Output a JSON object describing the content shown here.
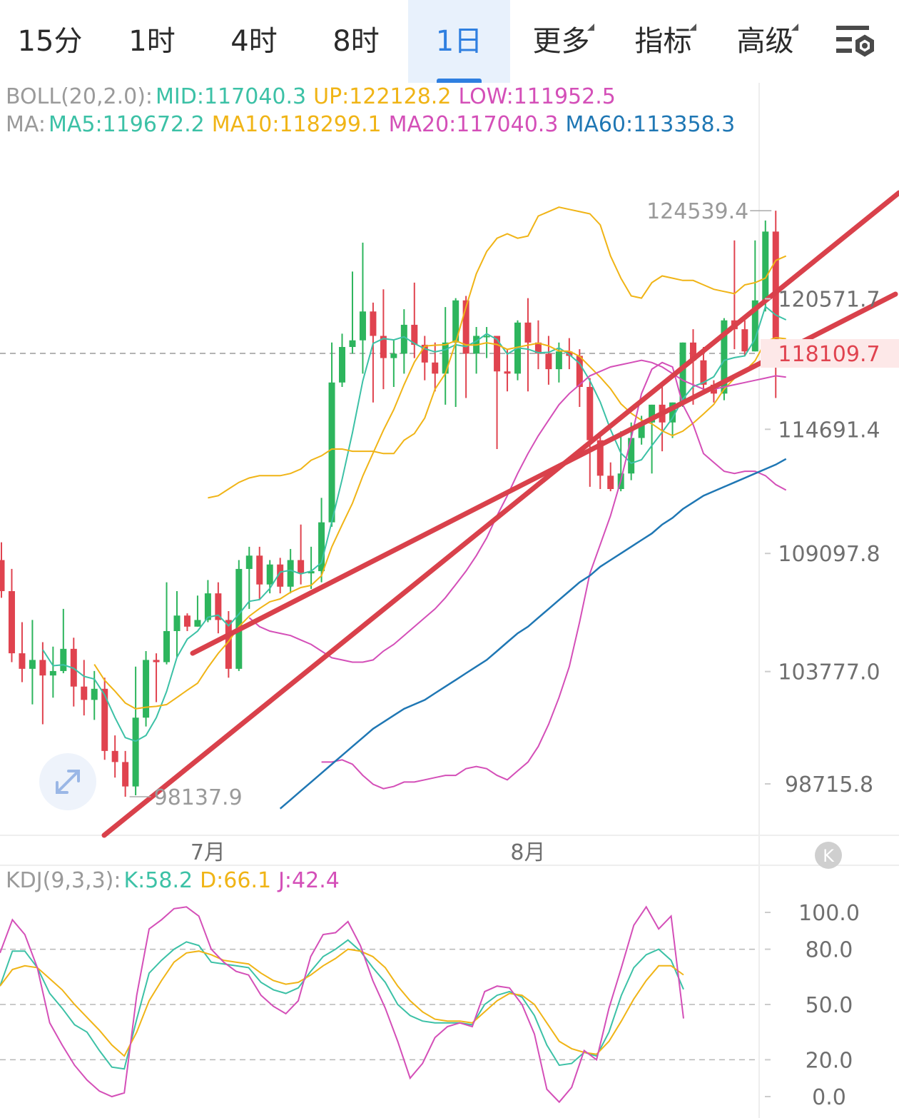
{
  "tabs": [
    {
      "label": "15分",
      "active": false,
      "dropdown": false
    },
    {
      "label": "1时",
      "active": false,
      "dropdown": false
    },
    {
      "label": "4时",
      "active": false,
      "dropdown": false
    },
    {
      "label": "8时",
      "active": false,
      "dropdown": false
    },
    {
      "label": "1日",
      "active": true,
      "dropdown": false
    },
    {
      "label": "更多",
      "active": false,
      "dropdown": true
    },
    {
      "label": "指标",
      "active": false,
      "dropdown": true
    },
    {
      "label": "高级",
      "active": false,
      "dropdown": true
    }
  ],
  "boll_legend": {
    "prefix": "BOLL(20,2.0):",
    "mid": "MID:117040.3",
    "up": "UP:122128.2",
    "low": "LOW:111952.5"
  },
  "ma_legend": {
    "prefix": "MA:",
    "ma5": "MA5:119672.2",
    "ma10": "MA10:118299.1",
    "ma20": "MA20:117040.3",
    "ma60": "MA60:113358.3"
  },
  "kdj_legend": {
    "prefix": "KDJ(9,3,3):",
    "k": "K:58.2",
    "d": "D:66.1",
    "j": "J:42.4"
  },
  "colors": {
    "up_candle": "#2db55d",
    "down_candle": "#e0434f",
    "boll_band": "#f0b416",
    "ma5": "#3cc1a6",
    "ma10": "#f0b416",
    "ma20": "#d44fb8",
    "ma60": "#1f77b4",
    "trendline": "#d9414b",
    "last_price_bg": "#fde8e8",
    "last_price_text": "#e0434f"
  },
  "chart_data": [
    {
      "type": "candlestick",
      "price_axis_ticks": [
        120571.7,
        114691.4,
        109097.8,
        103777.0,
        98715.8
      ],
      "price_axis_labels": [
        "120571.7",
        "114691.4",
        "109097.8",
        "103777.0",
        "98715.8"
      ],
      "ylim": [
        96400,
        127600
      ],
      "last_price": 118109.7,
      "last_price_label": "118109.7",
      "high_label": "124539.4",
      "high_value": 124539.4,
      "low_label": "98137.9",
      "low_value": 98137.9,
      "x_labels": [
        {
          "label": "7月",
          "index": 20
        },
        {
          "label": "8月",
          "index": 51
        }
      ],
      "candles": [
        [
          108800,
          107400,
          109600,
          107100
        ],
        [
          107400,
          104600,
          108400,
          104200
        ],
        [
          104600,
          103900,
          106000,
          103300
        ],
        [
          103900,
          104300,
          106100,
          102300
        ],
        [
          104300,
          103600,
          105100,
          101400
        ],
        [
          103600,
          103800,
          104900,
          102600
        ],
        [
          103800,
          104800,
          106600,
          103700
        ],
        [
          104800,
          103100,
          105300,
          102200
        ],
        [
          103100,
          102500,
          104300,
          101800
        ],
        [
          102500,
          103000,
          103800,
          101600
        ],
        [
          103000,
          100200,
          103500,
          99800
        ],
        [
          100200,
          99700,
          100900,
          99000
        ],
        [
          99700,
          98600,
          100200,
          98137.9
        ],
        [
          98600,
          101700,
          104000,
          98200
        ],
        [
          101700,
          104300,
          104700,
          101300
        ],
        [
          104300,
          104200,
          104600,
          102400
        ],
        [
          104200,
          105600,
          107800,
          104100
        ],
        [
          105600,
          106300,
          107400,
          104400
        ],
        [
          106300,
          105800,
          106400,
          105600
        ],
        [
          105800,
          106100,
          107200,
          105800
        ],
        [
          106100,
          107300,
          107900,
          106000
        ],
        [
          107300,
          106100,
          107800,
          105500
        ],
        [
          106100,
          103900,
          106500,
          103500
        ],
        [
          103900,
          108400,
          108800,
          103800
        ],
        [
          108400,
          109000,
          109400,
          106600
        ],
        [
          109000,
          107700,
          109400,
          107000
        ],
        [
          107700,
          108600,
          108800,
          107300
        ],
        [
          108600,
          107600,
          108900,
          107300
        ],
        [
          107600,
          108800,
          109300,
          107300
        ],
        [
          108800,
          108200,
          110400,
          107700
        ],
        [
          108200,
          108300,
          109400,
          107500
        ],
        [
          108300,
          110500,
          111600,
          107800
        ],
        [
          110500,
          116800,
          118600,
          110300
        ],
        [
          116800,
          118400,
          119000,
          116600
        ],
        [
          118400,
          118700,
          121800,
          118100
        ],
        [
          118700,
          120000,
          123100,
          117200
        ],
        [
          120000,
          118900,
          120400,
          115900
        ],
        [
          118900,
          117900,
          121000,
          116500
        ],
        [
          117900,
          118100,
          118700,
          116600
        ],
        [
          118100,
          119400,
          120100,
          117200
        ],
        [
          119400,
          118500,
          121300,
          117900
        ],
        [
          118500,
          117700,
          118900,
          116900
        ],
        [
          117700,
          117200,
          118600,
          116400
        ],
        [
          117200,
          118600,
          120200,
          115800
        ],
        [
          118600,
          120500,
          120600,
          115700
        ],
        [
          120500,
          118100,
          120700,
          116100
        ],
        [
          118100,
          118900,
          119300,
          117200
        ],
        [
          118900,
          118900,
          119300,
          117900
        ],
        [
          118900,
          117300,
          118600,
          113800
        ],
        [
          117300,
          117200,
          118300,
          116400
        ],
        [
          117200,
          119500,
          119600,
          116900
        ],
        [
          119500,
          118600,
          120600,
          116400
        ],
        [
          118600,
          118100,
          119600,
          117400
        ],
        [
          118100,
          117400,
          118900,
          116700
        ],
        [
          117400,
          118200,
          118600,
          116800
        ],
        [
          118200,
          118000,
          118800,
          117400
        ],
        [
          118000,
          116600,
          118300,
          115700
        ],
        [
          116600,
          114200,
          117000,
          112100
        ],
        [
          114200,
          112600,
          114500,
          112000
        ],
        [
          112600,
          112000,
          113200,
          111900
        ],
        [
          112000,
          112700,
          114600,
          111900
        ],
        [
          112700,
          114300,
          115000,
          112400
        ],
        [
          114300,
          115000,
          115300,
          114000
        ],
        [
          115000,
          115800,
          115800,
          112700
        ],
        [
          115800,
          115000,
          116800,
          113700
        ],
        [
          115000,
          115900,
          115900,
          114300
        ],
        [
          115900,
          118600,
          118600,
          115700
        ],
        [
          118600,
          117800,
          119200,
          115800
        ],
        [
          117800,
          116700,
          118400,
          116300
        ],
        [
          116700,
          116300,
          116900,
          115900
        ],
        [
          116300,
          119600,
          119700,
          116000
        ],
        [
          119600,
          119200,
          123200,
          118300
        ],
        [
          119200,
          118200,
          119600,
          118000
        ],
        [
          118200,
          120500,
          123200,
          118200
        ],
        [
          120500,
          123600,
          124100,
          120000
        ],
        [
          123600,
          117700,
          124539.4,
          116100
        ],
        [
          117700,
          118109.7,
          118500,
          117600
        ]
      ],
      "boll_upper": [
        111600,
        111700,
        112000,
        112300,
        112500,
        112600,
        112600,
        112600,
        112700,
        112900,
        113300,
        113500,
        113800,
        113800,
        113700,
        113700,
        113700,
        113600,
        113600,
        114200,
        114500,
        115200,
        116500,
        117200,
        118600,
        120200,
        121700,
        122700,
        123300,
        123500,
        123300,
        123400,
        124300,
        124500,
        124700,
        124600,
        124500,
        124400,
        123900,
        122500,
        121500,
        120700,
        120600,
        121300,
        121600,
        121500,
        121400,
        121400,
        121200,
        121000,
        120900,
        120800,
        121200,
        121300,
        121500,
        122300,
        122500
      ],
      "ma20": [
        106200,
        105800,
        105600,
        105500,
        105400,
        105200,
        105000,
        104700,
        104400,
        104300,
        104200,
        104200,
        104300,
        104700,
        105000,
        105400,
        105800,
        106200,
        106600,
        107100,
        107700,
        108300,
        109000,
        109800,
        110800,
        111700,
        112700,
        113600,
        114400,
        115100,
        115800,
        116300,
        116700,
        117100,
        117300,
        117500,
        117600,
        117700,
        117800,
        117700,
        117500,
        117200,
        116900,
        116700,
        116500,
        116500,
        116600,
        116700,
        116800,
        116900,
        117000,
        117100,
        117040.3
      ],
      "boll_lower": [
        99700,
        99700,
        99800,
        99600,
        99100,
        98700,
        98500,
        98600,
        98800,
        98800,
        98900,
        99000,
        99100,
        99100,
        99400,
        99500,
        99400,
        99100,
        98900,
        99300,
        99700,
        100400,
        101400,
        102600,
        104000,
        106000,
        108200,
        109500,
        110800,
        112400,
        114300,
        116300,
        117400,
        117700,
        117500,
        115800,
        114900,
        113600,
        113200,
        112800,
        112700,
        112800,
        112800,
        112600,
        112200,
        111952.5
      ],
      "ma60": [
        97600,
        98000,
        98400,
        98800,
        99200,
        99600,
        100000,
        100400,
        100800,
        101200,
        101500,
        101800,
        102100,
        102300,
        102500,
        102800,
        103100,
        103400,
        103700,
        104000,
        104300,
        104700,
        105100,
        105500,
        105800,
        106200,
        106600,
        107000,
        107400,
        107800,
        108100,
        108500,
        108800,
        109100,
        109400,
        109700,
        110000,
        110400,
        110700,
        111100,
        111400,
        111700,
        111900,
        112100,
        112300,
        112500,
        112700,
        112900,
        113100,
        113358.3
      ]
    },
    {
      "type": "line",
      "name": "KDJ",
      "ylim": [
        0,
        100
      ],
      "y_ticks": [
        100,
        80,
        50,
        20,
        0
      ],
      "y_tick_labels": [
        "100.0",
        "80.0",
        "50.0",
        "20.0",
        "0.0"
      ],
      "series": [
        {
          "name": "K",
          "values": [
            60,
            79,
            79,
            70,
            56,
            48,
            39,
            35,
            25,
            16,
            15,
            42,
            67,
            74,
            80,
            84,
            82,
            73,
            72,
            71,
            70,
            62,
            58,
            56,
            59,
            68,
            76,
            80,
            85,
            79,
            70,
            62,
            50,
            44,
            41,
            40,
            40,
            40,
            39,
            50,
            55,
            57,
            54,
            44,
            28,
            17,
            18,
            24,
            22,
            35,
            55,
            70,
            77,
            80,
            74,
            58.2
          ]
        },
        {
          "name": "D",
          "values": [
            60,
            69,
            71,
            70,
            64,
            58,
            50,
            43,
            36,
            28,
            22,
            35,
            52,
            63,
            73,
            78,
            79,
            77,
            74,
            73,
            72,
            67,
            63,
            61,
            62,
            66,
            71,
            75,
            80,
            79,
            76,
            70,
            60,
            52,
            46,
            42,
            41,
            41,
            40,
            46,
            52,
            56,
            55,
            50,
            40,
            30,
            26,
            24,
            23,
            30,
            41,
            53,
            63,
            71,
            71,
            66.1
          ]
        },
        {
          "name": "J",
          "values": [
            78,
            96,
            88,
            70,
            40,
            28,
            17,
            9,
            3,
            0,
            2,
            55,
            91,
            96,
            102,
            103,
            98,
            80,
            73,
            68,
            66,
            55,
            49,
            45,
            52,
            76,
            88,
            89,
            95,
            82,
            63,
            48,
            30,
            10,
            18,
            32,
            38,
            40,
            38,
            57,
            60,
            59,
            50,
            34,
            4,
            -10,
            5,
            25,
            20,
            48,
            70,
            93,
            103,
            91,
            98,
            42.4
          ]
        }
      ]
    }
  ]
}
